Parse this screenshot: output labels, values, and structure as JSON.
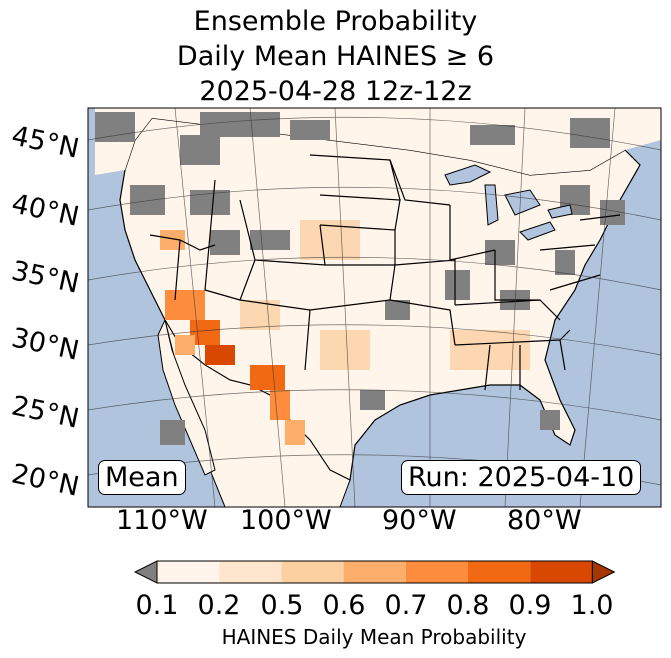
{
  "title": {
    "line1": "Ensemble Probability",
    "line2": "Daily Mean HAINES ≥ 6",
    "line3": "2025-04-28 12z-12z"
  },
  "latitude_labels": [
    "45°N",
    "40°N",
    "35°N",
    "30°N",
    "25°N",
    "20°N"
  ],
  "longitude_labels": [
    "110°W",
    "100°W",
    "90°W",
    "80°W"
  ],
  "stat_box": "Mean",
  "run_box": "Run: 2025-04-10",
  "colorbar": {
    "ticks": [
      "0.1",
      "0.2",
      "0.5",
      "0.6",
      "0.7",
      "0.8",
      "0.9",
      "1.0"
    ],
    "colors": [
      "#fff5eb",
      "#fee6ce",
      "#fdd0a2",
      "#fdae6b",
      "#fd8d3c",
      "#f16913",
      "#d94801",
      "#a63603"
    ],
    "under_color": "#808080",
    "label": "HAINES Daily Mean Probability"
  },
  "colors": {
    "ocean": "#b0c4de",
    "land": "#fff5eb",
    "masked": "#808080"
  }
}
